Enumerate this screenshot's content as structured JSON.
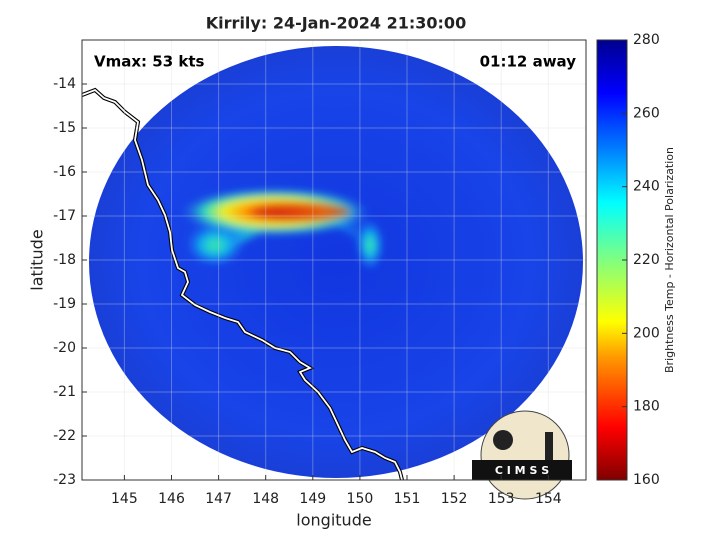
{
  "map": {
    "title": "Kirrily: 24-Jan-2024 21:30:00",
    "annotation_left": "Vmax: 53 kts",
    "annotation_right": "01:12 away",
    "xlabel": "longitude",
    "ylabel": "latitude",
    "xlim": [
      144.1,
      154.8
    ],
    "ylim": [
      -23,
      -13
    ],
    "xticks": [
      145,
      146,
      147,
      148,
      149,
      150,
      151,
      152,
      153,
      154
    ],
    "yticks": [
      -23,
      -22,
      -21,
      -20,
      -19,
      -18,
      -17,
      -16,
      -15,
      -14
    ],
    "grid": true,
    "colorbar": {
      "label": "Brightness Temp - Horizontal Polarization",
      "lim": [
        160,
        280
      ],
      "ticks": [
        160,
        180,
        200,
        220,
        240,
        260,
        280
      ]
    },
    "logo": "C I M S S"
  }
}
